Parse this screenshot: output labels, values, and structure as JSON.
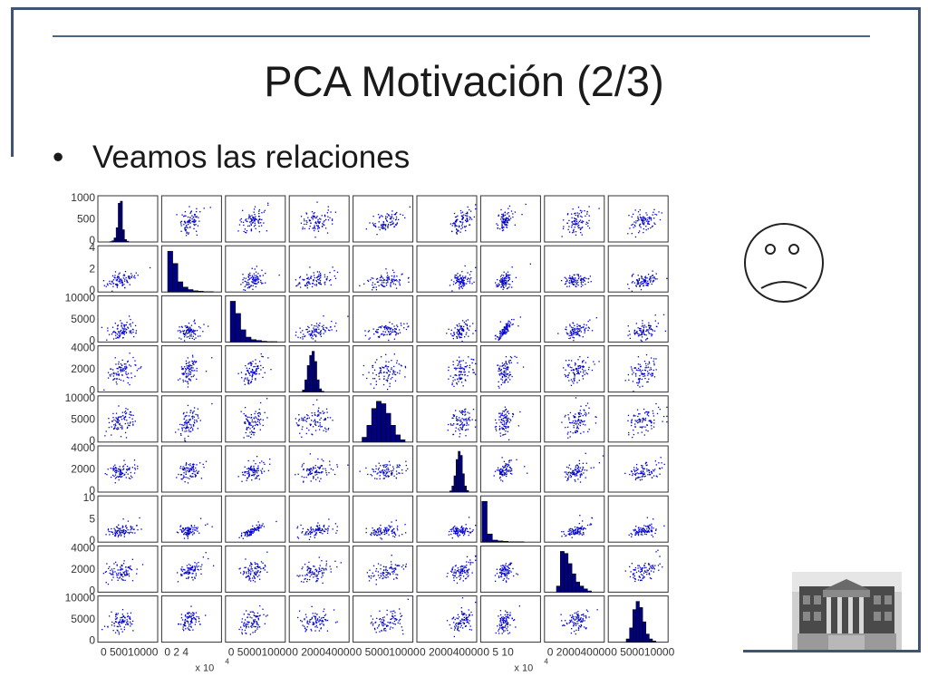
{
  "slide": {
    "title": "PCA Motivación (2/3)",
    "bullet": "Veamos las relaciones",
    "bullet_symbol": "•"
  },
  "icons": {
    "face": "sad-face-icon",
    "photo": "university-building-photo"
  },
  "colors": {
    "frame": "#3f5473",
    "points": "#0000cc",
    "bars": "#000080"
  },
  "chart_data": {
    "type": "scatter-matrix",
    "n_vars": 9,
    "point_color": "#0000cc",
    "hist_color": "#000080",
    "variables": [
      {
        "ylim": [
          0,
          1000
        ],
        "yticks": [
          "1000",
          "500",
          "0"
        ],
        "xlim": [
          0,
          10000
        ],
        "xtick_label": "0 50010000",
        "x_exponent": "",
        "hist": [
          1,
          3,
          10,
          35,
          95,
          100,
          30,
          6,
          2,
          0
        ],
        "hist_range": [
          0.2,
          0.55
        ]
      },
      {
        "ylim": [
          0,
          4
        ],
        "yticks": [
          "4",
          "2",
          "0"
        ],
        "xlim": [
          0,
          4
        ],
        "xtick_label": "0    2    4",
        "x_exponent": "x 10^4",
        "hist": [
          100,
          70,
          25,
          12,
          6,
          3,
          2,
          1,
          1,
          0
        ],
        "hist_range": [
          0.1,
          0.95
        ]
      },
      {
        "ylim": [
          0,
          10000
        ],
        "yticks": [
          "10000",
          "5000",
          "0"
        ],
        "xlim": [
          0,
          10000
        ],
        "xtick_label": "0 500010000",
        "x_exponent": "",
        "hist": [
          100,
          70,
          30,
          12,
          6,
          4,
          2,
          1,
          1,
          0
        ],
        "hist_range": [
          0.08,
          0.95
        ]
      },
      {
        "ylim": [
          0,
          4000
        ],
        "yticks": [
          "4000",
          "2000",
          "0"
        ],
        "xlim": [
          0,
          4000
        ],
        "xtick_label": "0 200040000",
        "x_exponent": "",
        "hist": [
          5,
          30,
          65,
          90,
          100,
          75,
          30,
          8,
          2,
          0
        ],
        "hist_range": [
          0.22,
          0.62
        ]
      },
      {
        "ylim": [
          0,
          10000
        ],
        "yticks": [
          "10000",
          "5000",
          "0"
        ],
        "xlim": [
          0,
          10000
        ],
        "xtick_label": "0 500010000",
        "x_exponent": "",
        "hist": [
          10,
          35,
          70,
          85,
          80,
          60,
          35,
          15,
          5,
          0
        ],
        "hist_range": [
          0.15,
          0.95
        ]
      },
      {
        "ylim": [
          0,
          4000
        ],
        "yticks": [
          "4000",
          "2000",
          "0"
        ],
        "xlim": [
          0,
          4000
        ],
        "xtick_label": "0 200040000",
        "x_exponent": "",
        "hist": [
          3,
          15,
          40,
          80,
          100,
          90,
          45,
          15,
          4,
          0
        ],
        "hist_range": [
          0.55,
          0.9
        ]
      },
      {
        "ylim": [
          0,
          10
        ],
        "yticks": [
          "10",
          "5",
          "0"
        ],
        "xlim": [
          0,
          10
        ],
        "xtick_label": "0    5    10",
        "x_exponent": "x 10^4",
        "hist": [
          100,
          20,
          5,
          3,
          2,
          1,
          1,
          1,
          0,
          0
        ],
        "hist_range": [
          0.02,
          0.9
        ]
      },
      {
        "ylim": [
          0,
          4000
        ],
        "yticks": [
          "4000",
          "2000",
          "0"
        ],
        "xlim": [
          0,
          4000
        ],
        "xtick_label": "0 200040000",
        "x_exponent": "",
        "hist": [
          15,
          100,
          95,
          70,
          45,
          25,
          15,
          8,
          3,
          0
        ],
        "hist_range": [
          0.2,
          0.85
        ]
      },
      {
        "ylim": [
          0,
          10000
        ],
        "yticks": [
          "10000",
          "5000",
          "0"
        ],
        "xlim": [
          0,
          10000
        ],
        "xtick_label": "0 500010000",
        "x_exponent": "",
        "hist": [
          8,
          35,
          80,
          100,
          85,
          50,
          20,
          8,
          3,
          0
        ],
        "hist_range": [
          0.3,
          0.85
        ]
      }
    ]
  }
}
